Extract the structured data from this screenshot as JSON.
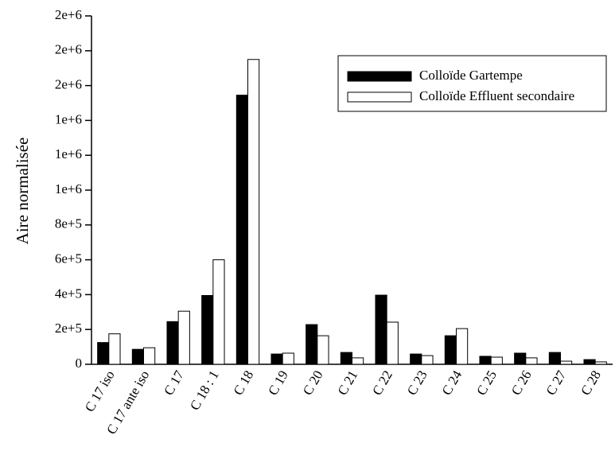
{
  "chart_data": {
    "type": "bar",
    "y_label": "Aire normalisée",
    "categories": [
      "C 17 iso",
      "C 17 ante iso",
      "C 17",
      "C 18 : 1",
      "C 18",
      "C 19",
      "C 20",
      "C 21",
      "C 22",
      "C 23",
      "C 24",
      "C 25",
      "C 26",
      "C 27",
      "C 28"
    ],
    "series": [
      {
        "name": "Colloïde Gartempe",
        "color": "#000000",
        "values": [
          125000,
          86000,
          245000,
          395000,
          1545000,
          59000,
          228000,
          68000,
          397000,
          59000,
          164000,
          46000,
          64000,
          68000,
          27000
        ]
      },
      {
        "name": "Colloïde Effluent secondaire",
        "color": "#ffffff",
        "values": [
          175000,
          95000,
          305000,
          600000,
          1750000,
          64000,
          164000,
          37000,
          242000,
          50000,
          205000,
          41000,
          37000,
          18000,
          14000
        ]
      }
    ],
    "ylim": [
      0,
      2000000
    ],
    "yticks": [
      0,
      {
        "value": 200000,
        "label": "2e+5"
      },
      {
        "value": 400000,
        "label": "4e+5"
      },
      {
        "value": 600000,
        "label": "6e+5"
      },
      {
        "value": 800000,
        "label": "8e+5"
      },
      {
        "value": 1000000,
        "label": "1e+6"
      },
      {
        "value": 1200000,
        "label": "1e+6"
      },
      {
        "value": 1400000,
        "label": "1e+6"
      },
      {
        "value": 1600000,
        "label": "2e+6"
      },
      {
        "value": 1800000,
        "label": "2e+6"
      },
      {
        "value": 2000000,
        "label": "2e+6"
      }
    ],
    "legend": "upper right"
  }
}
